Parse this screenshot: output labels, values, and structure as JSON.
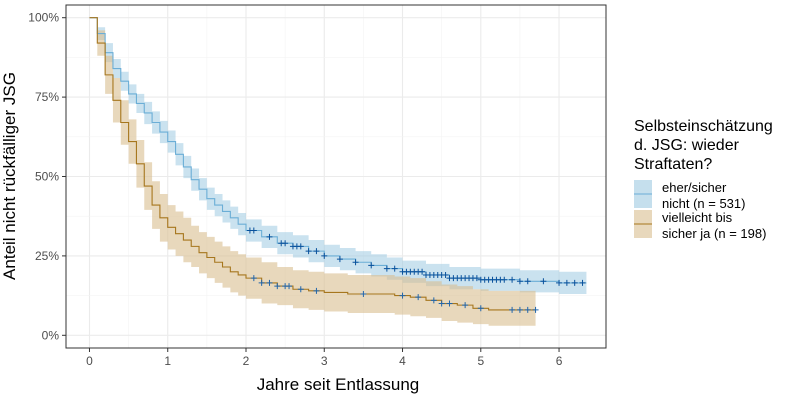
{
  "chart_data": {
    "type": "line",
    "title": "",
    "xlabel": "Jahre seit Entlassung",
    "ylabel": "Anteil nicht rückfälliger JSG",
    "xlim": [
      -0.3,
      6.6
    ],
    "ylim": [
      -0.04,
      1.04
    ],
    "x_ticks": [
      0,
      1,
      2,
      3,
      4,
      5,
      6
    ],
    "y_ticks": [
      0,
      0.25,
      0.5,
      0.75,
      1.0
    ],
    "y_tick_labels": [
      "0%",
      "25%",
      "50%",
      "75%",
      "100%"
    ],
    "grid": true,
    "legend": {
      "position": "right",
      "title_lines": [
        "Selbsteinschätzung",
        "d. JSG: wieder",
        "Straftaten?"
      ]
    },
    "series": [
      {
        "name": "eher/sicher nicht (n = 531)",
        "label_lines": [
          "eher/sicher",
          "nicht (n = 531)"
        ],
        "line_color": "#6BAED6",
        "band_color": "#9ECAE1",
        "censor_color": "#08519C",
        "points": [
          [
            0,
            1.0
          ],
          [
            0.1,
            0.95
          ],
          [
            0.2,
            0.89
          ],
          [
            0.3,
            0.84
          ],
          [
            0.4,
            0.8
          ],
          [
            0.5,
            0.76
          ],
          [
            0.6,
            0.73
          ],
          [
            0.7,
            0.7
          ],
          [
            0.8,
            0.67
          ],
          [
            0.9,
            0.64
          ],
          [
            1.0,
            0.61
          ],
          [
            1.1,
            0.57
          ],
          [
            1.2,
            0.53
          ],
          [
            1.3,
            0.49
          ],
          [
            1.4,
            0.46
          ],
          [
            1.5,
            0.43
          ],
          [
            1.6,
            0.41
          ],
          [
            1.7,
            0.39
          ],
          [
            1.8,
            0.37
          ],
          [
            1.9,
            0.35
          ],
          [
            2.0,
            0.33
          ],
          [
            2.2,
            0.31
          ],
          [
            2.4,
            0.29
          ],
          [
            2.6,
            0.28
          ],
          [
            2.8,
            0.265
          ],
          [
            3.0,
            0.25
          ],
          [
            3.2,
            0.24
          ],
          [
            3.4,
            0.23
          ],
          [
            3.6,
            0.22
          ],
          [
            3.8,
            0.21
          ],
          [
            4.0,
            0.2
          ],
          [
            4.3,
            0.19
          ],
          [
            4.6,
            0.18
          ],
          [
            5.0,
            0.175
          ],
          [
            5.5,
            0.17
          ],
          [
            6.0,
            0.165
          ],
          [
            6.35,
            0.165
          ]
        ],
        "upper": [
          [
            0,
            1.0
          ],
          [
            0.1,
            0.97
          ],
          [
            0.2,
            0.92
          ],
          [
            0.3,
            0.87
          ],
          [
            0.4,
            0.83
          ],
          [
            0.5,
            0.79
          ],
          [
            0.6,
            0.76
          ],
          [
            0.7,
            0.735
          ],
          [
            0.8,
            0.705
          ],
          [
            0.9,
            0.675
          ],
          [
            1.0,
            0.645
          ],
          [
            1.1,
            0.605
          ],
          [
            1.2,
            0.565
          ],
          [
            1.3,
            0.525
          ],
          [
            1.4,
            0.495
          ],
          [
            1.5,
            0.465
          ],
          [
            1.6,
            0.445
          ],
          [
            1.7,
            0.425
          ],
          [
            1.8,
            0.405
          ],
          [
            1.9,
            0.385
          ],
          [
            2.0,
            0.365
          ],
          [
            2.2,
            0.345
          ],
          [
            2.4,
            0.325
          ],
          [
            2.6,
            0.315
          ],
          [
            2.8,
            0.3
          ],
          [
            3.0,
            0.285
          ],
          [
            3.2,
            0.275
          ],
          [
            3.4,
            0.265
          ],
          [
            3.6,
            0.255
          ],
          [
            3.8,
            0.245
          ],
          [
            4.0,
            0.235
          ],
          [
            4.3,
            0.225
          ],
          [
            4.6,
            0.215
          ],
          [
            5.0,
            0.21
          ],
          [
            5.5,
            0.205
          ],
          [
            6.0,
            0.2
          ],
          [
            6.35,
            0.2
          ]
        ],
        "lower": [
          [
            0,
            1.0
          ],
          [
            0.1,
            0.93
          ],
          [
            0.2,
            0.86
          ],
          [
            0.3,
            0.81
          ],
          [
            0.4,
            0.77
          ],
          [
            0.5,
            0.73
          ],
          [
            0.6,
            0.7
          ],
          [
            0.7,
            0.665
          ],
          [
            0.8,
            0.635
          ],
          [
            0.9,
            0.605
          ],
          [
            1.0,
            0.575
          ],
          [
            1.1,
            0.535
          ],
          [
            1.2,
            0.495
          ],
          [
            1.3,
            0.455
          ],
          [
            1.4,
            0.425
          ],
          [
            1.5,
            0.395
          ],
          [
            1.6,
            0.375
          ],
          [
            1.7,
            0.355
          ],
          [
            1.8,
            0.335
          ],
          [
            1.9,
            0.315
          ],
          [
            2.0,
            0.295
          ],
          [
            2.2,
            0.275
          ],
          [
            2.4,
            0.255
          ],
          [
            2.6,
            0.245
          ],
          [
            2.8,
            0.23
          ],
          [
            3.0,
            0.215
          ],
          [
            3.2,
            0.205
          ],
          [
            3.4,
            0.195
          ],
          [
            3.6,
            0.185
          ],
          [
            3.8,
            0.175
          ],
          [
            4.0,
            0.165
          ],
          [
            4.3,
            0.155
          ],
          [
            4.6,
            0.145
          ],
          [
            5.0,
            0.14
          ],
          [
            5.5,
            0.135
          ],
          [
            6.0,
            0.13
          ],
          [
            6.35,
            0.13
          ]
        ],
        "censor_x": [
          2.05,
          2.1,
          2.3,
          2.45,
          2.5,
          2.6,
          2.65,
          2.7,
          2.8,
          2.9,
          3.0,
          3.2,
          3.4,
          3.6,
          3.8,
          3.9,
          4.0,
          4.05,
          4.1,
          4.15,
          4.2,
          4.25,
          4.3,
          4.35,
          4.4,
          4.45,
          4.5,
          4.55,
          4.6,
          4.65,
          4.7,
          4.75,
          4.8,
          4.85,
          4.9,
          4.95,
          5.0,
          5.05,
          5.1,
          5.15,
          5.2,
          5.25,
          5.3,
          5.4,
          5.5,
          5.6,
          5.8,
          6.0,
          6.1,
          6.2,
          6.3
        ]
      },
      {
        "name": "vielleicht bis sicher ja (n = 198)",
        "label_lines": [
          "vielleicht bis",
          "sicher ja (n = 198)"
        ],
        "line_color": "#A6761D",
        "band_color": "#D9BE8F",
        "censor_color": "#2166AC",
        "points": [
          [
            0,
            1.0
          ],
          [
            0.1,
            0.92
          ],
          [
            0.2,
            0.82
          ],
          [
            0.3,
            0.74
          ],
          [
            0.4,
            0.67
          ],
          [
            0.5,
            0.61
          ],
          [
            0.6,
            0.54
          ],
          [
            0.7,
            0.47
          ],
          [
            0.8,
            0.41
          ],
          [
            0.9,
            0.37
          ],
          [
            1.0,
            0.34
          ],
          [
            1.1,
            0.32
          ],
          [
            1.2,
            0.3
          ],
          [
            1.3,
            0.28
          ],
          [
            1.4,
            0.26
          ],
          [
            1.5,
            0.245
          ],
          [
            1.6,
            0.23
          ],
          [
            1.7,
            0.215
          ],
          [
            1.8,
            0.2
          ],
          [
            1.9,
            0.19
          ],
          [
            2.0,
            0.18
          ],
          [
            2.2,
            0.165
          ],
          [
            2.4,
            0.155
          ],
          [
            2.6,
            0.145
          ],
          [
            2.8,
            0.14
          ],
          [
            3.0,
            0.135
          ],
          [
            3.3,
            0.13
          ],
          [
            3.6,
            0.13
          ],
          [
            3.9,
            0.125
          ],
          [
            4.1,
            0.12
          ],
          [
            4.3,
            0.11
          ],
          [
            4.5,
            0.1
          ],
          [
            4.7,
            0.095
          ],
          [
            4.9,
            0.085
          ],
          [
            5.1,
            0.08
          ],
          [
            5.4,
            0.08
          ],
          [
            5.7,
            0.08
          ]
        ],
        "upper": [
          [
            0,
            1.0
          ],
          [
            0.1,
            0.96
          ],
          [
            0.2,
            0.88
          ],
          [
            0.3,
            0.81
          ],
          [
            0.4,
            0.74
          ],
          [
            0.5,
            0.68
          ],
          [
            0.6,
            0.615
          ],
          [
            0.7,
            0.545
          ],
          [
            0.8,
            0.485
          ],
          [
            0.9,
            0.445
          ],
          [
            1.0,
            0.41
          ],
          [
            1.1,
            0.39
          ],
          [
            1.2,
            0.37
          ],
          [
            1.3,
            0.345
          ],
          [
            1.4,
            0.325
          ],
          [
            1.5,
            0.31
          ],
          [
            1.6,
            0.295
          ],
          [
            1.7,
            0.28
          ],
          [
            1.8,
            0.265
          ],
          [
            1.9,
            0.255
          ],
          [
            2.0,
            0.245
          ],
          [
            2.2,
            0.23
          ],
          [
            2.4,
            0.215
          ],
          [
            2.6,
            0.205
          ],
          [
            2.8,
            0.2
          ],
          [
            3.0,
            0.195
          ],
          [
            3.3,
            0.19
          ],
          [
            3.6,
            0.19
          ],
          [
            3.9,
            0.185
          ],
          [
            4.1,
            0.18
          ],
          [
            4.3,
            0.17
          ],
          [
            4.5,
            0.16
          ],
          [
            4.7,
            0.155
          ],
          [
            4.9,
            0.145
          ],
          [
            5.1,
            0.14
          ],
          [
            5.4,
            0.14
          ],
          [
            5.7,
            0.14
          ]
        ],
        "lower": [
          [
            0,
            1.0
          ],
          [
            0.1,
            0.88
          ],
          [
            0.2,
            0.76
          ],
          [
            0.3,
            0.67
          ],
          [
            0.4,
            0.6
          ],
          [
            0.5,
            0.54
          ],
          [
            0.6,
            0.465
          ],
          [
            0.7,
            0.395
          ],
          [
            0.8,
            0.335
          ],
          [
            0.9,
            0.295
          ],
          [
            1.0,
            0.27
          ],
          [
            1.1,
            0.25
          ],
          [
            1.2,
            0.23
          ],
          [
            1.3,
            0.215
          ],
          [
            1.4,
            0.195
          ],
          [
            1.5,
            0.18
          ],
          [
            1.6,
            0.165
          ],
          [
            1.7,
            0.15
          ],
          [
            1.8,
            0.135
          ],
          [
            1.9,
            0.125
          ],
          [
            2.0,
            0.115
          ],
          [
            2.2,
            0.1
          ],
          [
            2.4,
            0.095
          ],
          [
            2.6,
            0.085
          ],
          [
            2.8,
            0.08
          ],
          [
            3.0,
            0.075
          ],
          [
            3.3,
            0.07
          ],
          [
            3.6,
            0.07
          ],
          [
            3.9,
            0.065
          ],
          [
            4.1,
            0.06
          ],
          [
            4.3,
            0.055
          ],
          [
            4.5,
            0.045
          ],
          [
            4.7,
            0.04
          ],
          [
            4.9,
            0.035
          ],
          [
            5.1,
            0.03
          ],
          [
            5.4,
            0.03
          ],
          [
            5.7,
            0.03
          ]
        ],
        "censor_x": [
          2.1,
          2.2,
          2.3,
          2.4,
          2.5,
          2.55,
          2.7,
          2.9,
          3.5,
          4.0,
          4.2,
          4.4,
          4.5,
          4.6,
          4.8,
          5.0,
          5.4,
          5.5,
          5.6,
          5.7
        ]
      }
    ]
  }
}
